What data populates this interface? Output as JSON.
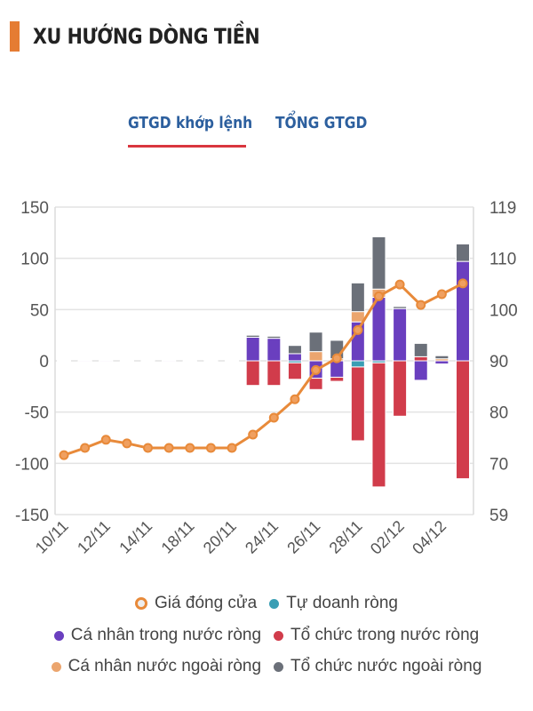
{
  "header": {
    "title": "XU HƯỚNG DÒNG TIỀN",
    "accent_color": "#e57c33"
  },
  "tabs": [
    {
      "label": "GTGD khớp lệnh",
      "active": true
    },
    {
      "label": "TỔNG GTGD",
      "active": false
    }
  ],
  "legend": [
    {
      "label": "Giá đóng cửa",
      "color": "#e88a3a",
      "marker": "ring"
    },
    {
      "label": "Tự doanh ròng",
      "color": "#3a9eb4",
      "marker": "dot"
    },
    {
      "label": "Cá nhân trong nước ròng",
      "color": "#6a3fbf",
      "marker": "dot"
    },
    {
      "label": "Tổ chức trong nước ròng",
      "color": "#d13c4b",
      "marker": "dot"
    },
    {
      "label": "Cá nhân nước ngoài ròng",
      "color": "#eba56e",
      "marker": "dot"
    },
    {
      "label": "Tổ chức nước ngoài ròng",
      "color": "#6b7079",
      "marker": "dot"
    }
  ],
  "chart_data": {
    "type": "bar",
    "stacked": true,
    "title": "XU HƯỚNG DÒNG TIỀN",
    "x": [
      "10/11",
      "11/11",
      "12/11",
      "13/11",
      "14/11",
      "17/11",
      "18/11",
      "19/11",
      "20/11",
      "21/11",
      "24/11",
      "25/11",
      "26/11",
      "27/11",
      "28/11",
      "01/12",
      "02/12",
      "03/12",
      "04/12",
      "05/12"
    ],
    "x_tick_labels": [
      "10/11",
      "12/11",
      "14/11",
      "18/11",
      "20/11",
      "24/11",
      "26/11",
      "28/11",
      "02/12",
      "04/12"
    ],
    "x_tick_every": 2,
    "y_left": {
      "ticks": [
        150,
        100,
        50,
        0,
        -50,
        -100,
        -150
      ],
      "range": [
        -150,
        150
      ]
    },
    "y_right": {
      "ticks": [
        119,
        110,
        100,
        90,
        80,
        70,
        59
      ],
      "range": [
        59,
        119
      ]
    },
    "grid": true,
    "legend_position": "bottom",
    "series": [
      {
        "name": "Tự doanh ròng",
        "color": "#3a9eb4",
        "axis": "left",
        "values": [
          0,
          0,
          0,
          0,
          0,
          0,
          0,
          0,
          0,
          0,
          0,
          -2,
          0,
          0,
          -6,
          -2,
          0,
          0,
          0,
          0
        ]
      },
      {
        "name": "Cá nhân trong nước ròng",
        "color": "#6a3fbf",
        "axis": "left",
        "values": [
          0.5,
          -1,
          -1,
          0.5,
          -0.5,
          -1,
          0.5,
          -0.5,
          0.5,
          23,
          22,
          7,
          -17,
          -16,
          38,
          62,
          51,
          -19,
          -3,
          97
        ]
      },
      {
        "name": "Tổ chức trong nước ròng",
        "color": "#d13c4b",
        "axis": "left",
        "values": [
          -0.5,
          0.5,
          0.5,
          -0.5,
          0.5,
          0.5,
          -0.5,
          0.5,
          -0.5,
          -24,
          -24,
          -16,
          -11,
          -4,
          -72,
          -121,
          -54,
          4,
          0,
          -115
        ]
      },
      {
        "name": "Cá nhân nước ngoài ròng",
        "color": "#eba56e",
        "axis": "left",
        "values": [
          0,
          0,
          0,
          0,
          0,
          0,
          0,
          0,
          0,
          0,
          0,
          0,
          9,
          2,
          10,
          8,
          0,
          0,
          2,
          0
        ]
      },
      {
        "name": "Tổ chức nước ngoài ròng",
        "color": "#6b7079",
        "axis": "left",
        "values": [
          0,
          0,
          0,
          0,
          0,
          0,
          0,
          0,
          0,
          2,
          2,
          8,
          19,
          18,
          28,
          51,
          2,
          13,
          3,
          17
        ]
      },
      {
        "name": "Giá đóng cửa",
        "type": "line",
        "color": "#e88a3a",
        "axis": "right",
        "values": [
          70.6,
          72.0,
          73.6,
          72.9,
          72.0,
          72.0,
          72.0,
          72.0,
          72.0,
          74.6,
          77.9,
          81.5,
          87.2,
          89.5,
          95.0,
          101.6,
          103.9,
          99.9,
          102.0,
          104.1
        ]
      }
    ]
  }
}
